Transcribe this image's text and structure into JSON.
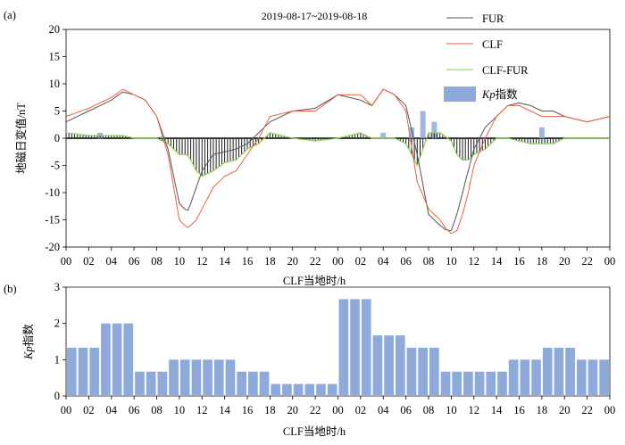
{
  "chart_data": [
    {
      "panel_label": "(a)",
      "type": "line",
      "title": "2019-08-17~2019-08-18",
      "ylabel": "地磁日变值/nT",
      "xlabel": "CLF当地时/h",
      "ylim": [
        -20,
        20
      ],
      "yticks": [
        "-20",
        "-15",
        "-10",
        "-5",
        "0",
        "5",
        "10",
        "15",
        "20"
      ],
      "xticks": [
        "00",
        "02",
        "04",
        "06",
        "08",
        "10",
        "12",
        "14",
        "16",
        "18",
        "20",
        "22",
        "00",
        "02",
        "04",
        "06",
        "08",
        "10",
        "12",
        "14",
        "16",
        "18",
        "20",
        "22",
        "00"
      ],
      "legend_placement": "top-right",
      "legend": [
        "FUR",
        "CLF",
        "CLF-FUR",
        "Kp指数"
      ],
      "colors": {
        "FUR": "#555555",
        "CLF": "#e8623f",
        "CLF-FUR": "#1a1a1a",
        "CLF-FUR_envelope": "#8fcf50",
        "Kp": "#8eaadb"
      },
      "x_hours": [
        0,
        2,
        4,
        5,
        6,
        7,
        8,
        9,
        10,
        10.7,
        11,
        11.5,
        12,
        13,
        14,
        15,
        16,
        17,
        18,
        20,
        22,
        24,
        26,
        27,
        28,
        29,
        30,
        31,
        32,
        33,
        33.5,
        34,
        34.5,
        35,
        35.5,
        36,
        37,
        38,
        39,
        40,
        41,
        42,
        43,
        44,
        46,
        48
      ],
      "series": [
        {
          "name": "FUR",
          "values": [
            3,
            5,
            7,
            8.5,
            8,
            7,
            4,
            -2,
            -12,
            -13.5,
            -12,
            -9,
            -6,
            -3,
            -2.5,
            -2,
            -1,
            1,
            3,
            5,
            5.5,
            8,
            7,
            6,
            9,
            8,
            6,
            -3,
            -14,
            -16,
            -16.8,
            -17,
            -14,
            -10,
            -6,
            -2,
            2,
            4,
            6,
            6.5,
            6,
            5,
            5,
            4,
            3,
            4
          ]
        },
        {
          "name": "CLF",
          "values": [
            4,
            5.5,
            7.5,
            9,
            8,
            7,
            4,
            -3,
            -15,
            -16.5,
            -16,
            -15,
            -13,
            -9,
            -7,
            -6,
            -3,
            0,
            4,
            5,
            5,
            8,
            8,
            6,
            9,
            8,
            5,
            -8,
            -13,
            -15,
            -16.5,
            -17.5,
            -17,
            -14,
            -10,
            -5,
            0,
            4,
            6,
            6,
            5,
            4,
            4,
            4,
            3,
            4
          ]
        },
        {
          "name": "CLF-FUR",
          "values": [
            1,
            0.5,
            0.5,
            0.5,
            0,
            0,
            0,
            -1,
            -3,
            -3,
            -4,
            -6,
            -7,
            -6,
            -4.5,
            -4,
            -2,
            -1,
            1,
            0,
            -0.5,
            0,
            1,
            0,
            0,
            0,
            -1,
            -5,
            1,
            1,
            0.3,
            -0.5,
            -3,
            -4,
            -4,
            -3,
            -2,
            0,
            0,
            -0.5,
            -1,
            -1,
            -1,
            0,
            0,
            0
          ]
        }
      ],
      "kp_secondary_values": [
        1.33,
        1.33,
        1.33,
        2,
        2,
        2,
        0.67,
        0.67,
        0.67,
        1,
        1,
        1,
        1,
        1,
        1,
        0.67,
        0.67,
        0.67,
        0.33,
        0.33,
        0.33,
        0.33,
        0.33,
        0.33,
        2.67,
        2.67,
        2.67,
        1.67,
        1.67,
        1.67,
        1.33,
        1.33,
        1.33,
        0.67,
        0.67,
        0.67,
        0.67,
        0.67,
        0.67,
        1,
        1,
        1,
        1.33,
        1.33,
        1.33,
        1,
        1,
        1
      ],
      "kp_bars_shown_on_axis": [
        {
          "x": 3,
          "value": 1
        },
        {
          "x": 8.5,
          "value": 0.3
        },
        {
          "x": 28,
          "value": 1
        },
        {
          "x": 30.5,
          "value": 2
        },
        {
          "x": 31.5,
          "value": 5
        },
        {
          "x": 32.5,
          "value": 3
        },
        {
          "x": 42,
          "value": 2
        }
      ]
    },
    {
      "panel_label": "(b)",
      "type": "bar",
      "title": "",
      "ylabel": "Kp指数",
      "xlabel": "CLF当地时/h",
      "ylim": [
        0,
        3
      ],
      "yticks": [
        "0",
        "1",
        "2",
        "3"
      ],
      "xticks": [
        "00",
        "02",
        "04",
        "06",
        "08",
        "10",
        "12",
        "14",
        "16",
        "18",
        "20",
        "22",
        "00",
        "02",
        "04",
        "06",
        "08",
        "10",
        "12",
        "14",
        "16",
        "18",
        "20",
        "22",
        "00"
      ],
      "bar_width_hours": 1,
      "values": [
        1.33,
        1.33,
        1.33,
        2,
        2,
        2,
        0.67,
        0.67,
        0.67,
        1,
        1,
        1,
        1,
        1,
        1,
        0.67,
        0.67,
        0.67,
        0.33,
        0.33,
        0.33,
        0.33,
        0.33,
        0.33,
        2.67,
        2.67,
        2.67,
        1.67,
        1.67,
        1.67,
        1.33,
        1.33,
        1.33,
        0.67,
        0.67,
        0.67,
        0.67,
        0.67,
        0.67,
        1,
        1,
        1,
        1.33,
        1.33,
        1.33,
        1,
        1,
        1
      ],
      "color": "#8eaadb"
    }
  ]
}
